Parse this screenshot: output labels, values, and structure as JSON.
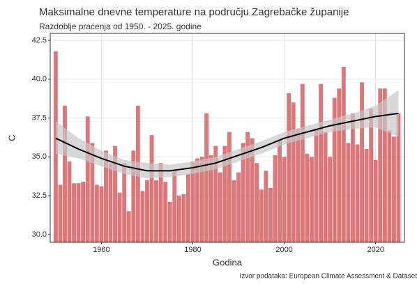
{
  "chart_data": {
    "type": "bar",
    "title": "Maksimalne dnevne temperature na području Zagrebačke županije",
    "subtitle": "Razdoblje praćenja od 1950. - 2025. godine",
    "x_label": "Godina",
    "y_label": "C",
    "caption": "Izvor podataka: European Climate Assessment & Dataset",
    "x": [
      1950,
      1951,
      1952,
      1953,
      1954,
      1955,
      1956,
      1957,
      1958,
      1959,
      1960,
      1961,
      1962,
      1963,
      1964,
      1965,
      1966,
      1967,
      1968,
      1969,
      1970,
      1971,
      1972,
      1973,
      1974,
      1975,
      1976,
      1977,
      1978,
      1979,
      1980,
      1981,
      1982,
      1983,
      1984,
      1985,
      1986,
      1987,
      1988,
      1989,
      1990,
      1991,
      1992,
      1993,
      1994,
      1995,
      1996,
      1997,
      1998,
      1999,
      2000,
      2001,
      2002,
      2003,
      2004,
      2005,
      2006,
      2007,
      2008,
      2009,
      2010,
      2011,
      2012,
      2013,
      2014,
      2015,
      2016,
      2017,
      2018,
      2019,
      2020,
      2021,
      2022,
      2023,
      2024,
      2025
    ],
    "values": [
      41.8,
      33.2,
      38.3,
      34.7,
      33.3,
      33.3,
      33.4,
      37.6,
      35.9,
      33.2,
      33.1,
      35.4,
      34.6,
      35.7,
      32.7,
      34.6,
      31.5,
      35.4,
      38.3,
      32.8,
      33.5,
      36.4,
      33.5,
      34.6,
      33.4,
      32.1,
      34.1,
      32.5,
      32.6,
      33.9,
      34.7,
      34.9,
      35.0,
      37.8,
      35.1,
      35.7,
      34.0,
      35.7,
      36.6,
      33.5,
      34.0,
      35.9,
      36.6,
      36.2,
      34.6,
      32.9,
      34.1,
      33.0,
      35.1,
      36.1,
      35.0,
      39.1,
      38.5,
      36.8,
      39.7,
      35.2,
      35.0,
      36.8,
      39.7,
      36.6,
      35.0,
      38.8,
      39.4,
      40.8,
      35.9,
      37.8,
      35.8,
      39.8,
      35.5,
      38.1,
      34.8,
      39.4,
      39.4,
      36.7,
      36.3,
      37.8
    ],
    "color": "#d9686a",
    "trend": {
      "x": [
        1950,
        1955,
        1960,
        1965,
        1970,
        1975,
        1980,
        1985,
        1990,
        1995,
        2000,
        2005,
        2010,
        2015,
        2020,
        2025
      ],
      "values": [
        36.2,
        35.5,
        34.9,
        34.4,
        34.1,
        34.1,
        34.3,
        34.6,
        35.1,
        35.6,
        36.2,
        36.6,
        37.0,
        37.3,
        37.6,
        37.8
      ],
      "lower": [
        35.2,
        34.9,
        34.4,
        33.9,
        33.6,
        33.7,
        33.9,
        34.2,
        34.7,
        35.2,
        35.8,
        36.2,
        36.6,
        36.8,
        36.9,
        36.3
      ],
      "upper": [
        37.3,
        36.2,
        35.4,
        34.8,
        34.6,
        34.5,
        34.7,
        35.0,
        35.5,
        36.0,
        36.6,
        37.0,
        37.4,
        37.8,
        38.3,
        39.3
      ],
      "color": "#000000",
      "band_color": "#c8c8c8"
    },
    "xlim": [
      1948.8,
      2026.3
    ],
    "xticks": [
      1960,
      1980,
      2000,
      2020
    ],
    "ylim": [
      29.5,
      42.95
    ],
    "yticks": [
      {
        "value": 30,
        "label": "30.0"
      },
      32.5,
      {
        "value": 35,
        "label": "35.0"
      },
      37.5,
      {
        "value": 40,
        "label": "40.0"
      },
      42.5
    ],
    "grid": true
  }
}
